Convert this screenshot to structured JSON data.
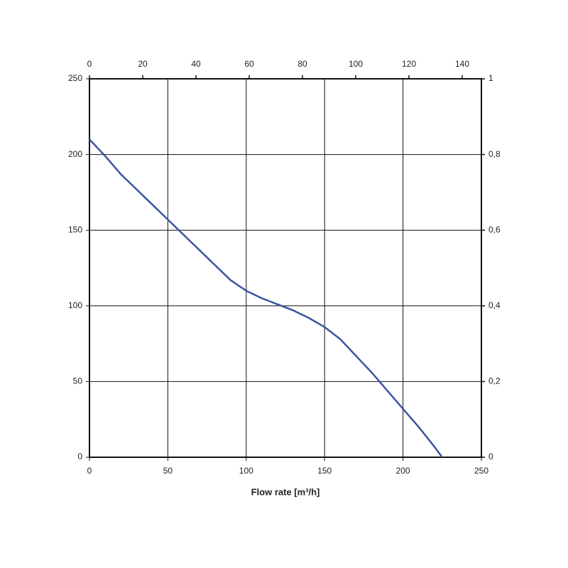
{
  "chart_data": {
    "type": "line",
    "xlabel": "Flow rate [m³/h]",
    "x": [
      0,
      10,
      20,
      30,
      40,
      50,
      60,
      70,
      80,
      90,
      100,
      110,
      120,
      130,
      140,
      150,
      160,
      170,
      180,
      190,
      200,
      210,
      220,
      225
    ],
    "series": [
      {
        "color": "#3b54a0",
        "values": [
          210,
          199,
          187,
          177,
          167,
          157,
          147,
          137,
          127,
          117,
          110,
          105,
          101,
          97,
          92,
          86,
          78,
          67,
          56,
          44,
          32,
          20,
          7,
          0
        ]
      }
    ],
    "xlim": [
      0,
      250
    ],
    "xticks": [
      0,
      50,
      100,
      150,
      200,
      250
    ],
    "x2lim": [
      0,
      147.2
    ],
    "x2ticks": [
      0,
      20,
      40,
      60,
      80,
      100,
      120,
      140
    ],
    "ylim": [
      0,
      250
    ],
    "yticks": [
      0,
      50,
      100,
      150,
      200,
      250
    ],
    "y2lim": [
      0,
      1
    ],
    "y2ticks": [
      0,
      {
        "value": 0.2,
        "label": "0,2"
      },
      {
        "value": 0.4,
        "label": "0,4"
      },
      {
        "value": 0.6,
        "label": "0,6"
      },
      {
        "value": 0.8,
        "label": "0,8"
      },
      1
    ],
    "grid": true
  }
}
